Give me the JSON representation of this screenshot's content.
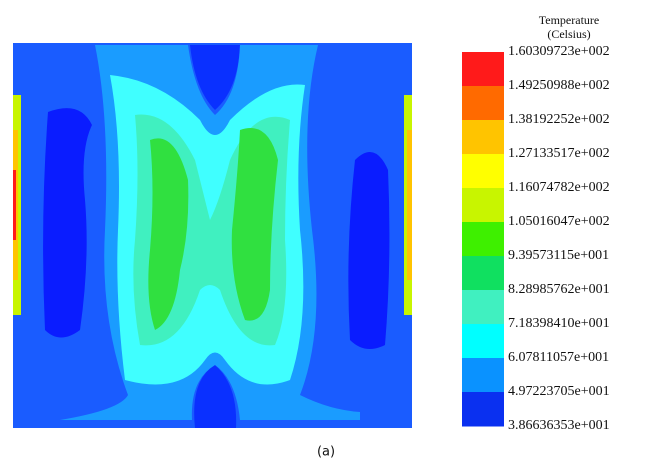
{
  "legend": {
    "title": "Temperature",
    "unit": "(Celsius)",
    "labels": [
      "1.60309723e+002",
      "1.49250988e+002",
      "1.38192252e+002",
      "1.27133517e+002",
      "1.16074782e+002",
      "1.05016047e+002",
      "9.39573115e+001",
      "8.28985762e+001",
      "7.18398410e+001",
      "6.07811057e+001",
      "4.97223705e+001",
      "3.86636353e+001"
    ],
    "colors": [
      "#ff1a1a",
      "#ff6a00",
      "#ffc400",
      "#ffff00",
      "#c8f500",
      "#3ef000",
      "#10e060",
      "#40f0c0",
      "#00ffff",
      "#0a92ff",
      "#0a30f0"
    ]
  },
  "caption": "(a)"
}
